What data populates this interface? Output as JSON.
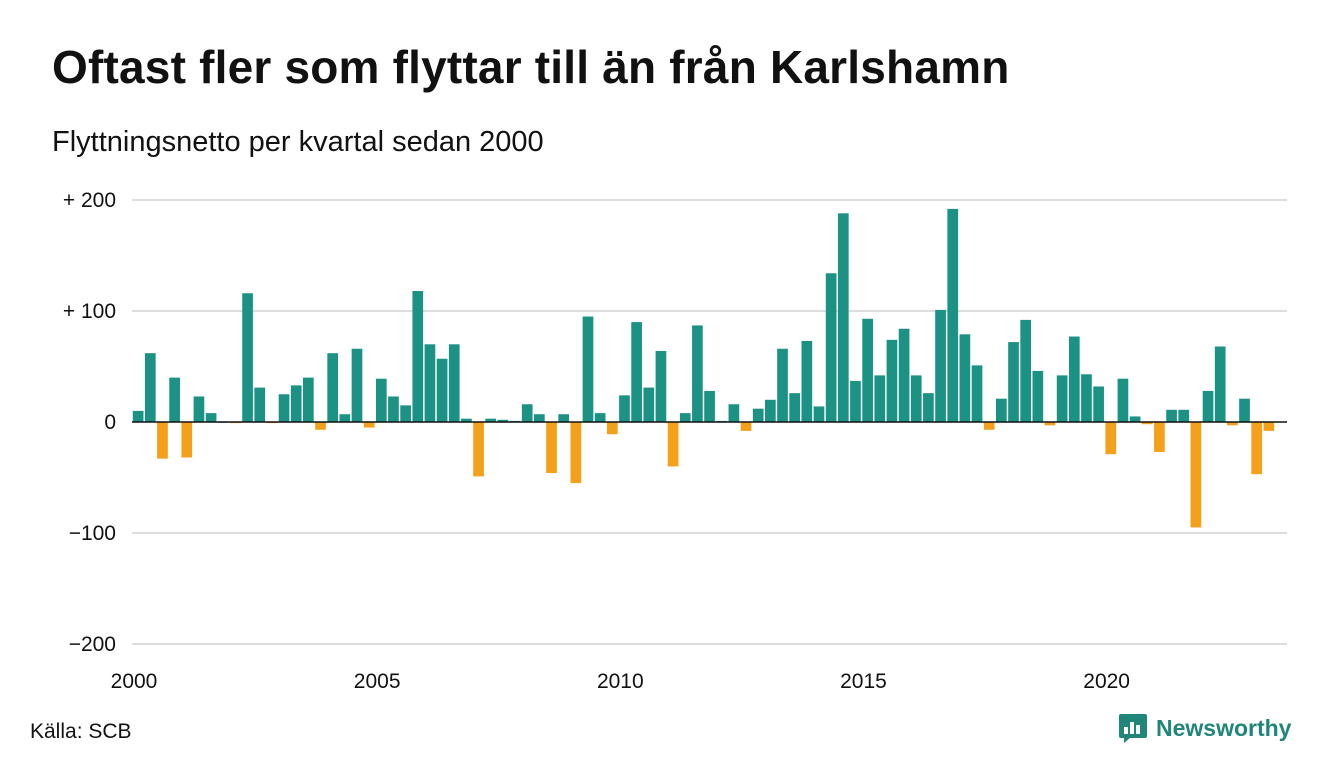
{
  "title": "Oftast fler som flyttar till än från Karlshamn",
  "subtitle": "Flyttningsnetto per kvartal sedan 2000",
  "source": "Källa: SCB",
  "brand": {
    "name": "Newsworthy",
    "icon": "newsworthy-logo-icon",
    "color": "#20867a"
  },
  "colors": {
    "positive": "#1b9284",
    "negative": "#f5a01a",
    "grid": "#dddddd",
    "zero_line": "#111111"
  },
  "chart_data": {
    "type": "bar",
    "title": "Oftast fler som flyttar till än från Karlshamn",
    "subtitle": "Flyttningsnetto per kvartal sedan 2000",
    "xlabel": "",
    "ylabel": "",
    "ylim": [
      -200,
      200
    ],
    "xlim": [
      2000,
      2023.75
    ],
    "grid": true,
    "y_ticks": [
      {
        "value": 200,
        "label": "+ 200"
      },
      {
        "value": 100,
        "label": "+ 100"
      },
      {
        "value": 0,
        "label": "0"
      },
      {
        "value": -100,
        "label": "−100"
      },
      {
        "value": -200,
        "label": "−200"
      }
    ],
    "x_ticks": [
      {
        "value": 2000,
        "label": "2000"
      },
      {
        "value": 2005,
        "label": "2005"
      },
      {
        "value": 2010,
        "label": "2010"
      },
      {
        "value": 2015,
        "label": "2015"
      },
      {
        "value": 2020,
        "label": "2020"
      }
    ],
    "start_year": 2000,
    "periods_per_year": 4,
    "values": [
      10,
      62,
      -33,
      40,
      -32,
      23,
      8,
      0,
      -1,
      116,
      31,
      -1,
      25,
      33,
      40,
      -7,
      62,
      7,
      66,
      -5,
      39,
      23,
      15,
      118,
      70,
      57,
      70,
      3,
      -49,
      3,
      2,
      1,
      16,
      7,
      -46,
      7,
      -55,
      95,
      8,
      -11,
      24,
      90,
      31,
      64,
      -40,
      8,
      87,
      28,
      1,
      16,
      -8,
      12,
      20,
      66,
      26,
      73,
      14,
      134,
      188,
      37,
      93,
      42,
      74,
      84,
      42,
      26,
      101,
      192,
      79,
      51,
      -7,
      21,
      72,
      92,
      46,
      -3,
      42,
      77,
      43,
      32,
      -29,
      39,
      5,
      -2,
      -27,
      11,
      11,
      -95,
      28,
      68,
      -3,
      21,
      -47,
      -8
    ]
  }
}
